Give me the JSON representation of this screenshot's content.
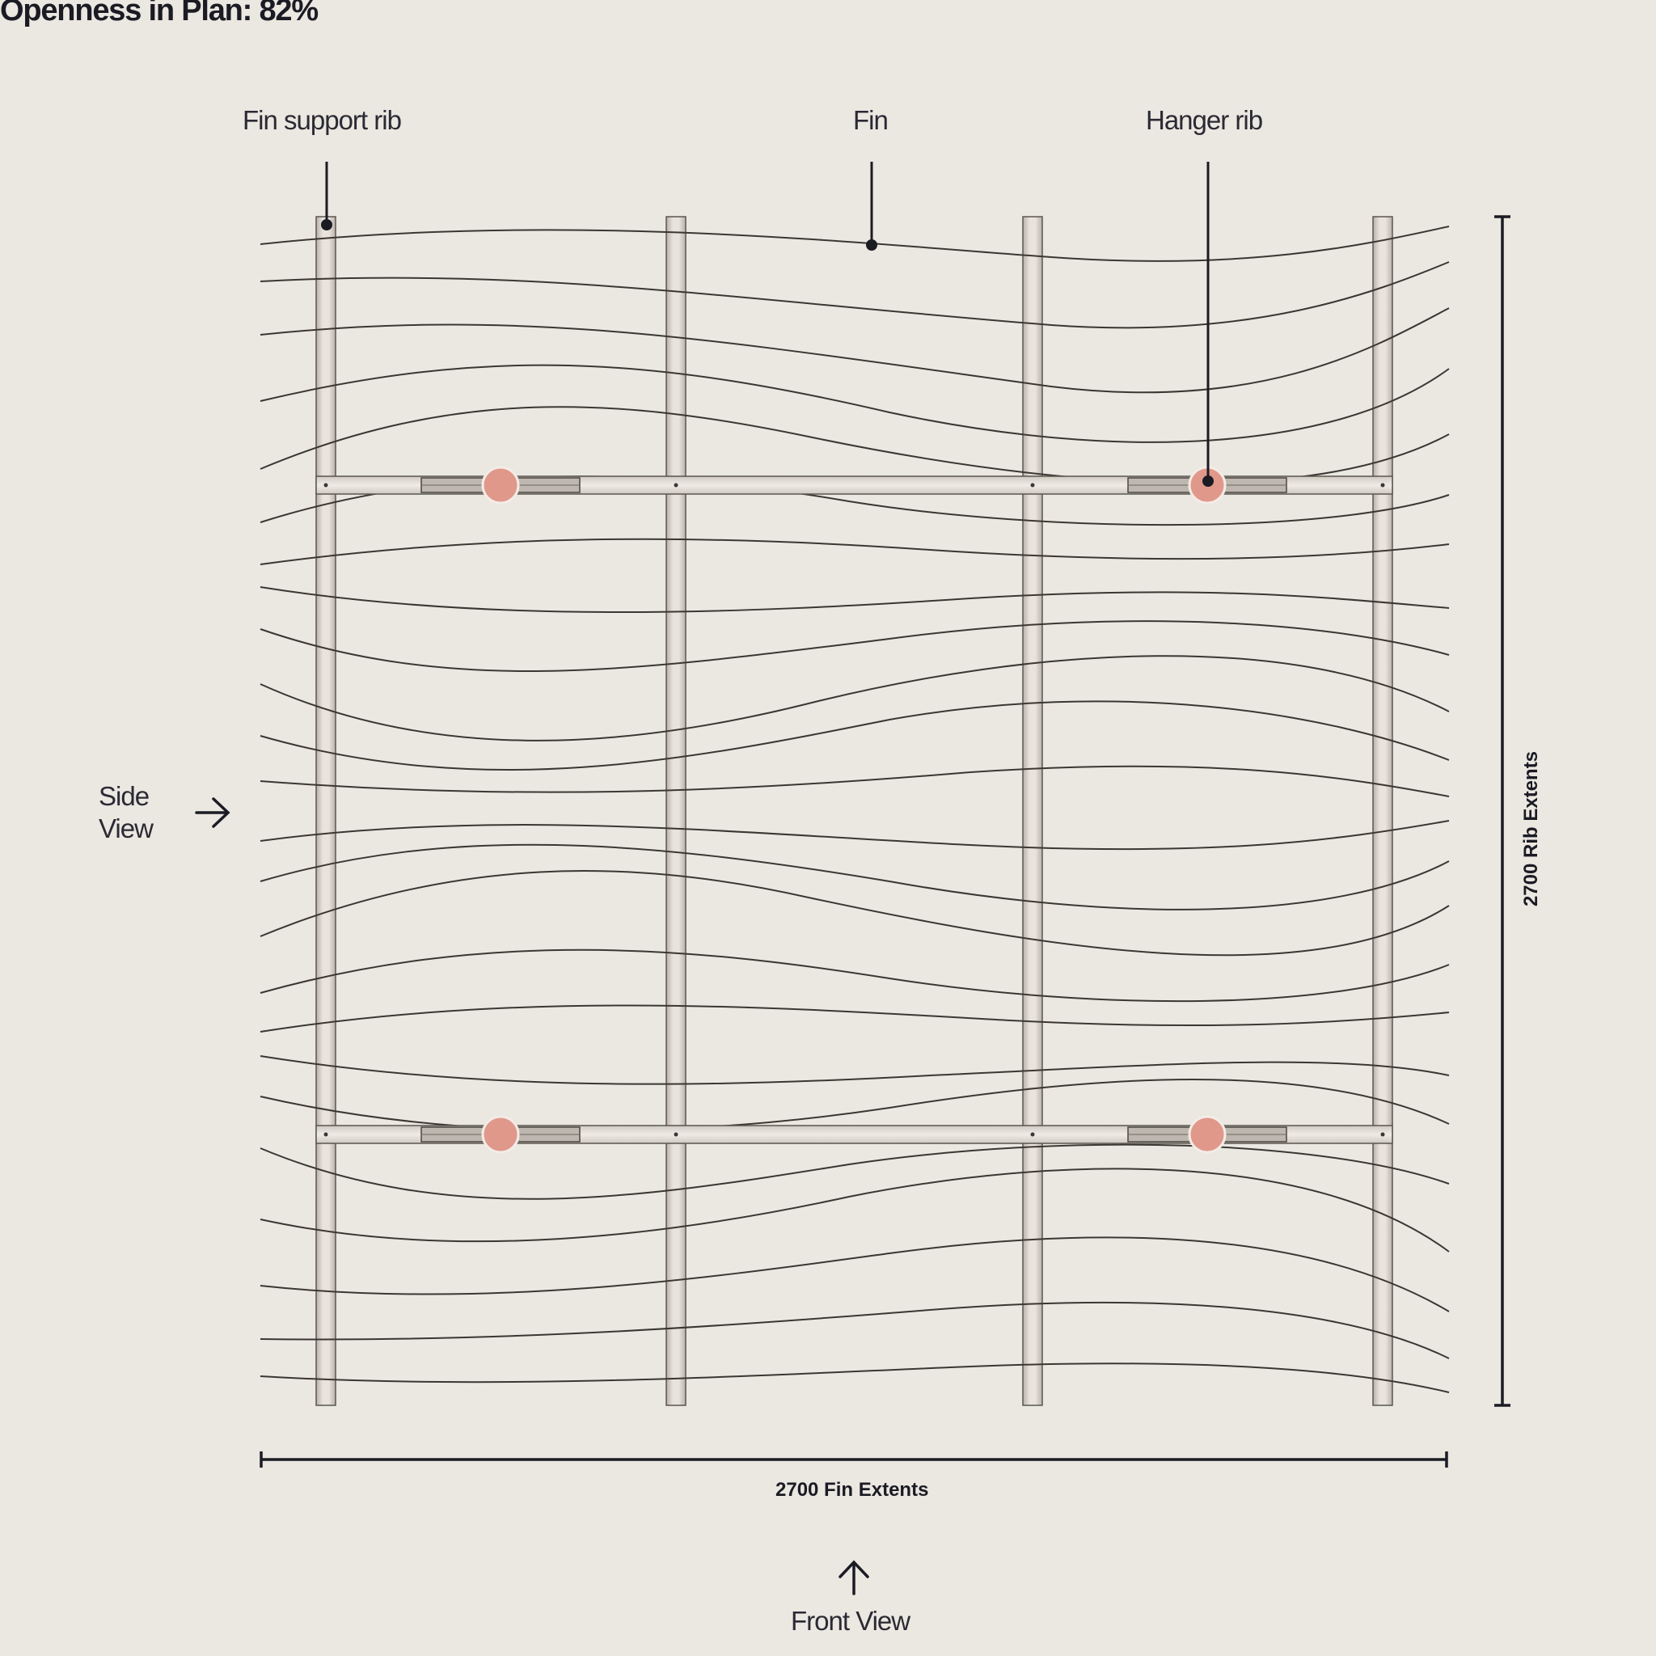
{
  "title": "Openness in Plan: 82%",
  "callouts": {
    "fin_support_rib": "Fin support rib",
    "fin": "Fin",
    "hanger_rib": "Hanger rib"
  },
  "views": {
    "side_line1": "Side",
    "side_line2": "View",
    "front": "Front View"
  },
  "dimensions": {
    "fin_extents": "2700 Fin Extents",
    "rib_extents": "2700 Rib Extents"
  },
  "colors": {
    "background": "#ebe7e1",
    "ink": "#1b1b24",
    "hanger_point": "#e0988b",
    "rib_fill": "#e2ddd6"
  },
  "icons": [
    "arrow-right-icon",
    "arrow-up-icon"
  ]
}
